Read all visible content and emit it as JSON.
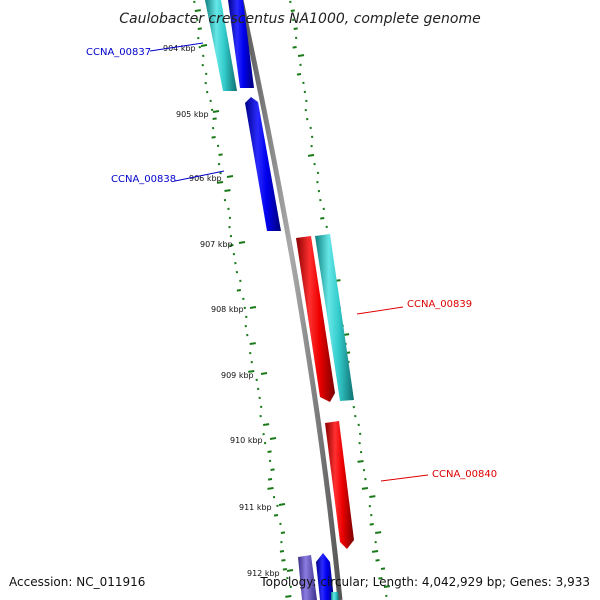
{
  "title": "Caulobacter crescentus NA1000, complete genome",
  "footer": {
    "accession": "Accession: NC_011916",
    "topology": "Topology: circular; Length: 4,042,929 bp; Genes: 3,933"
  },
  "colors": {
    "backbone": "#808080",
    "gc_ticks": "#1a7a1a",
    "forward_gene": "#0000ff",
    "reverse_gene": "#ff0000",
    "cds_cyan": "#33cccc",
    "faded_gene": "#6a5acd",
    "label_blue": "#0000cc",
    "label_red": "#dd0000"
  },
  "ticks": [
    {
      "label": "904 kbp"
    },
    {
      "label": "905 kbp"
    },
    {
      "label": "906 kbp"
    },
    {
      "label": "907 kbp"
    },
    {
      "label": "908 kbp"
    },
    {
      "label": "909 kbp"
    },
    {
      "label": "910 kbp"
    },
    {
      "label": "911 kbp"
    },
    {
      "label": "912 kbp"
    }
  ],
  "gene_labels": [
    {
      "text": "CCNA_00837",
      "color": "#0000cc"
    },
    {
      "text": "CCNA_00838",
      "color": "#0000cc"
    },
    {
      "text": "CCNA_00839",
      "color": "#dd0000"
    },
    {
      "text": "CCNA_00840",
      "color": "#dd0000"
    }
  ]
}
